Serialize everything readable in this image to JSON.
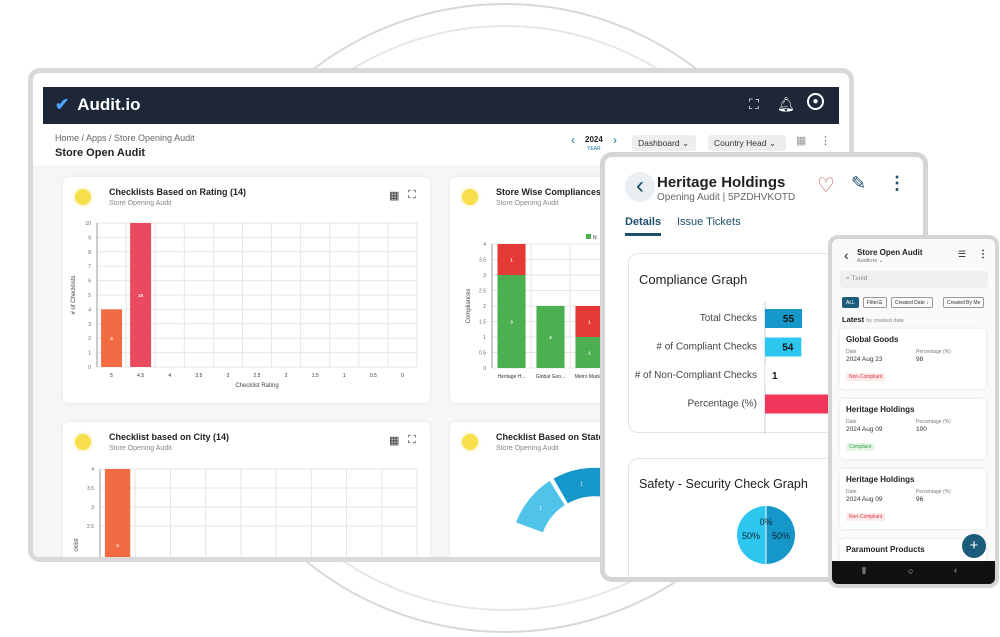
{
  "app": {
    "name": "Audit.io",
    "breadcrumb": "Home / Apps / Store Opening Audit",
    "page_title": "Store Open Audit",
    "year": "2024",
    "year_label": "YEAR",
    "dashboard_select": "Dashboard",
    "role_select": "Country Head",
    "icons": [
      "check-logo",
      "fullscreen-icon",
      "bell-icon",
      "user-icon",
      "grid-icon",
      "kebab-icon"
    ]
  },
  "cards": [
    {
      "title": "Checklists Based on Rating  (14)",
      "subtitle": "Store Opening Audit"
    },
    {
      "title": "Store Wise Compliances  (",
      "subtitle": "Store Opening Audit"
    },
    {
      "title": "Checklist based on City  (14)",
      "subtitle": "Store Opening Audit"
    },
    {
      "title": "Checklist Based on State  (",
      "subtitle": "Store Opening Audit"
    }
  ],
  "chart_data": [
    {
      "type": "bar",
      "title": "Checklists Based on Rating  (14)",
      "xlabel": "Checklist Rating",
      "ylabel": "# of Checklists",
      "categories": [
        "5",
        "4.5",
        "4",
        "3.5",
        "3",
        "2.5",
        "2",
        "1.5",
        "1",
        "0.5",
        "0"
      ],
      "values": [
        4,
        10,
        0,
        0,
        0,
        0,
        0,
        0,
        0,
        0,
        0
      ],
      "ylim": [
        0,
        10
      ],
      "yticks": [
        0,
        1,
        2,
        3,
        4,
        5,
        6,
        7,
        8,
        9,
        10
      ],
      "colors": [
        "#f26b43",
        "#e84a5f"
      ],
      "grid": true
    },
    {
      "type": "bar",
      "stacked": true,
      "title": "Store Wise Compliances",
      "ylabel": "Compliances",
      "categories": [
        "Heritage H...",
        "Global Goo...",
        "Metro Mark..."
      ],
      "series": [
        {
          "values": [
            3,
            2,
            1
          ],
          "color": "#4caf50"
        },
        {
          "values": [
            1,
            0,
            1
          ],
          "color": "#e53935"
        }
      ],
      "legend_partial": "N",
      "ylim": [
        0,
        4
      ],
      "yticks": [
        0,
        0.5,
        1,
        1.5,
        2,
        2.5,
        3,
        3.5,
        4
      ],
      "grid": true
    },
    {
      "type": "bar",
      "title": "Checklist based on City  (14)",
      "ylabel": "cklist",
      "values": [
        4
      ],
      "ylim": [
        0,
        4
      ],
      "yticks": [
        2.5,
        3,
        3.5,
        4
      ],
      "colors": [
        "#f26b43"
      ],
      "grid": true
    },
    {
      "type": "pie",
      "title": "Checklist Based on State",
      "values": [
        1,
        1,
        1
      ],
      "labels": [
        "1",
        "1",
        "1"
      ],
      "colors": [
        "#4fc3e8",
        "#1597c9",
        "#f0b93a"
      ]
    },
    {
      "type": "bar",
      "orientation": "horizontal",
      "title": "Compliance Graph",
      "categories": [
        "Total Checks",
        "# of Compliant Checks",
        "# of Non-Compliant Checks",
        "Percentage (%)"
      ],
      "values": [
        55,
        54,
        1,
        98
      ],
      "labels": [
        "55",
        "54",
        "1",
        ""
      ],
      "colors": [
        "#1597c9",
        "#2cc6ef",
        "#ffffff",
        "#f0375b"
      ]
    },
    {
      "type": "pie",
      "title": "Safety - Security Check Graph",
      "values": [
        0,
        50,
        50
      ],
      "labels": [
        "0%",
        "50%",
        "50%"
      ],
      "colors": [
        "#1597c9",
        "#2cc6ef",
        "#1597c9"
      ]
    }
  ],
  "tablet": {
    "title": "Heritage Holdings",
    "subtitle": "Opening Audit | 5PZDHVKOTD",
    "tabs": [
      "Details",
      "Issue Tickets"
    ],
    "active_tab": "Details"
  },
  "phone": {
    "title": "Store Open Audit",
    "subtitle": "Auditors",
    "search_placeholder": "Txnid",
    "chips": [
      "ALL",
      "Filter",
      "Created Date",
      "Created By Me"
    ],
    "latest": "Latest",
    "latest_sub": "by created date",
    "date_label": "Date",
    "pct_label": "Percentage (%)",
    "items": [
      {
        "name": "Global Goods",
        "date": "2024 Aug 23",
        "pct": "98",
        "status": "Non-Compliant"
      },
      {
        "name": "Heritage Holdings",
        "date": "2024 Aug 09",
        "pct": "100",
        "status": "Compliant"
      },
      {
        "name": "Heritage Holdings",
        "date": "2024 Aug 09",
        "pct": "96",
        "status": "Non-Compliant"
      },
      {
        "name": "Paramount Products"
      }
    ]
  },
  "colors": {
    "header": "#1d2738",
    "accent": "#1a5c7a",
    "compliant": "#2e9d3e",
    "non_compliant": "#d9343c"
  }
}
